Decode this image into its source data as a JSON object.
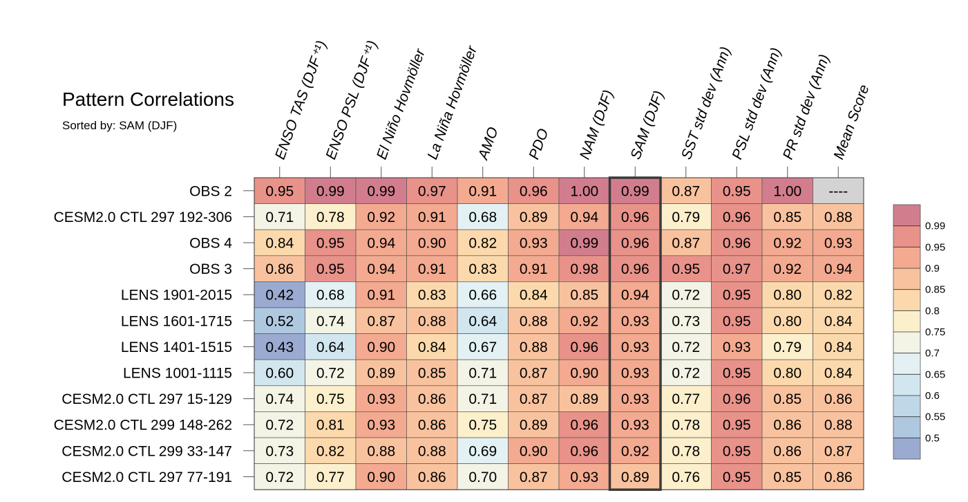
{
  "chart_data": {
    "type": "heatmap",
    "title": "Pattern Correlations",
    "subtitle": "Sorted by: SAM (DJF)",
    "columns": [
      "ENSO TAS (DJF⁺¹)",
      "ENSO PSL (DJF⁺¹)",
      "El Niño Hovmöller",
      "La Niña Hovmöller",
      "AMO",
      "PDO",
      "NAM (DJF)",
      "SAM (DJF)",
      "SST std dev (Ann)",
      "PSL std dev (Ann)",
      "PR std dev (Ann)",
      "Mean Score"
    ],
    "highlighted_column": "SAM (DJF)",
    "rows": [
      {
        "label": "OBS 2",
        "values": [
          "0.95",
          "0.99",
          "0.99",
          "0.97",
          "0.91",
          "0.96",
          "1.00",
          "0.99",
          "0.87",
          "0.95",
          "1.00",
          "----"
        ]
      },
      {
        "label": "CESM2.0 CTL 297 192-306",
        "values": [
          "0.71",
          "0.78",
          "0.92",
          "0.91",
          "0.68",
          "0.89",
          "0.94",
          "0.96",
          "0.79",
          "0.96",
          "0.85",
          "0.88"
        ]
      },
      {
        "label": "OBS 4",
        "values": [
          "0.84",
          "0.95",
          "0.94",
          "0.90",
          "0.82",
          "0.93",
          "0.99",
          "0.96",
          "0.87",
          "0.96",
          "0.92",
          "0.93"
        ]
      },
      {
        "label": "OBS 3",
        "values": [
          "0.86",
          "0.95",
          "0.94",
          "0.91",
          "0.83",
          "0.91",
          "0.98",
          "0.96",
          "0.95",
          "0.97",
          "0.92",
          "0.94"
        ]
      },
      {
        "label": "LENS 1901-2015",
        "values": [
          "0.42",
          "0.68",
          "0.91",
          "0.83",
          "0.66",
          "0.84",
          "0.85",
          "0.94",
          "0.72",
          "0.95",
          "0.80",
          "0.82"
        ]
      },
      {
        "label": "LENS 1601-1715",
        "values": [
          "0.52",
          "0.74",
          "0.87",
          "0.88",
          "0.64",
          "0.88",
          "0.92",
          "0.93",
          "0.73",
          "0.95",
          "0.80",
          "0.84"
        ]
      },
      {
        "label": "LENS 1401-1515",
        "values": [
          "0.43",
          "0.64",
          "0.90",
          "0.84",
          "0.67",
          "0.88",
          "0.96",
          "0.93",
          "0.72",
          "0.93",
          "0.79",
          "0.84"
        ]
      },
      {
        "label": "LENS 1001-1115",
        "values": [
          "0.60",
          "0.72",
          "0.89",
          "0.85",
          "0.71",
          "0.87",
          "0.90",
          "0.93",
          "0.72",
          "0.95",
          "0.80",
          "0.84"
        ]
      },
      {
        "label": "CESM2.0 CTL 297 15-129",
        "values": [
          "0.74",
          "0.75",
          "0.93",
          "0.86",
          "0.71",
          "0.87",
          "0.89",
          "0.93",
          "0.77",
          "0.96",
          "0.85",
          "0.86"
        ]
      },
      {
        "label": "CESM2.0 CTL 299 148-262",
        "values": [
          "0.72",
          "0.81",
          "0.93",
          "0.86",
          "0.75",
          "0.89",
          "0.96",
          "0.93",
          "0.78",
          "0.95",
          "0.86",
          "0.88"
        ]
      },
      {
        "label": "CESM2.0 CTL 299 33-147",
        "values": [
          "0.73",
          "0.82",
          "0.88",
          "0.88",
          "0.69",
          "0.90",
          "0.96",
          "0.92",
          "0.78",
          "0.95",
          "0.86",
          "0.87"
        ]
      },
      {
        "label": "CESM2.0 CTL 297 77-191",
        "values": [
          "0.72",
          "0.77",
          "0.90",
          "0.86",
          "0.70",
          "0.87",
          "0.93",
          "0.89",
          "0.76",
          "0.95",
          "0.85",
          "0.86"
        ]
      }
    ],
    "colorbar": {
      "ticks": [
        "0.99",
        "0.95",
        "0.9",
        "0.85",
        "0.8",
        "0.75",
        "0.7",
        "0.65",
        "0.6",
        "0.55",
        "0.5"
      ],
      "thresholds": [
        0.5,
        0.55,
        0.6,
        0.65,
        0.7,
        0.75,
        0.8,
        0.85,
        0.9,
        0.95,
        0.99
      ],
      "colors": [
        "#9aaad0",
        "#aec8e0",
        "#bed8e8",
        "#d2e6ef",
        "#e3f1f5",
        "#f3f3e6",
        "#fcefcc",
        "#fcd9ac",
        "#f9c29e",
        "#f3aa90",
        "#e8928a",
        "#d27d8d"
      ],
      "missing_color": "#d3d3d3"
    }
  }
}
